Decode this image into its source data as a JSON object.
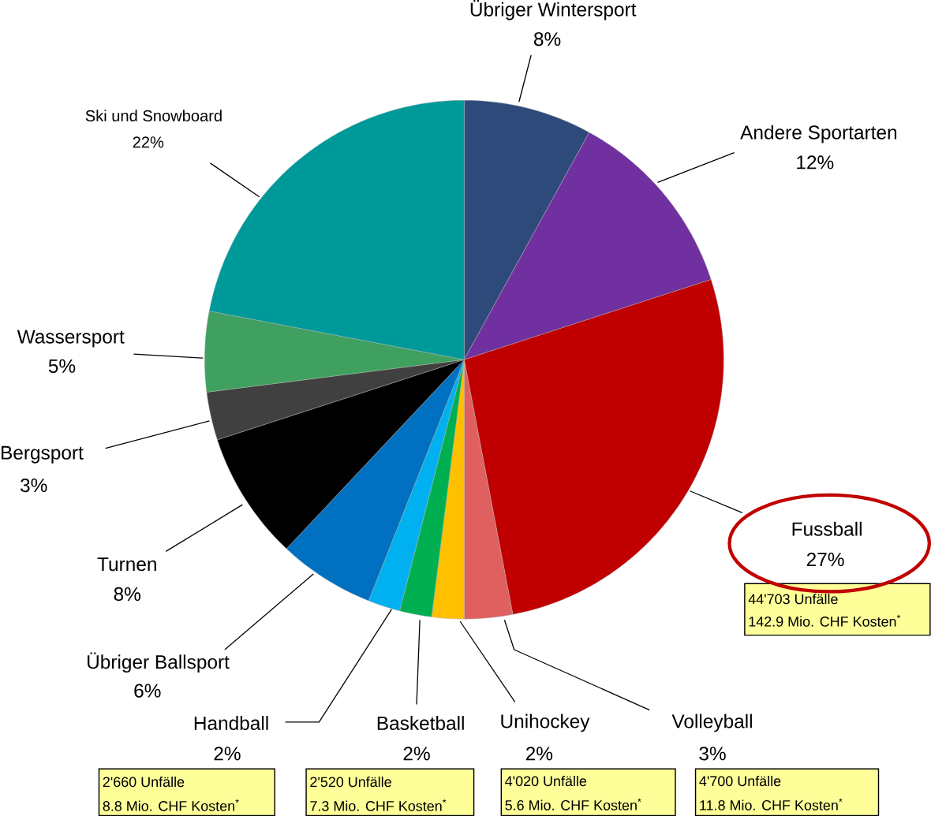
{
  "chart_data": {
    "type": "pie",
    "categories": [
      "Übriger Wintersport",
      "Andere Sportarten",
      "Fussball",
      "Volleyball",
      "Unihockey",
      "Basketball",
      "Handball",
      "Übriger Ballsport",
      "Turnen",
      "Bergsport",
      "Wassersport",
      "Ski und Snowboard"
    ],
    "values": [
      8,
      12,
      27,
      3,
      2,
      2,
      2,
      6,
      8,
      3,
      5,
      22
    ],
    "colors": [
      "#2e4a7a",
      "#7030a0",
      "#c00000",
      "#e06060",
      "#ffc000",
      "#00b050",
      "#00b0f0",
      "#0070c0",
      "#000000",
      "#404040",
      "#40a060",
      "#009999"
    ],
    "value_labels": [
      "8%",
      "12%",
      "27%",
      "3%",
      "2%",
      "2%",
      "2%",
      "6%",
      "8%",
      "3%",
      "5%",
      "22%"
    ],
    "annotations": [
      "44'703 Unfälle",
      "142.9 Mio. CHF Kosten$^{*}$",
      "4'700 Unfälle",
      "11.8 Mio. CHF Kosten$^{*}$",
      "4'020 Unfälle",
      "5.6 Mio. CHF Kosten$^{*}$",
      "2'520 Unfälle",
      "7.3 Mio. CHF Kosten$^{*}$",
      "2'660 Unfälle",
      "8.8 Mio. CHF Kosten$^{*}$"
    ]
  }
}
